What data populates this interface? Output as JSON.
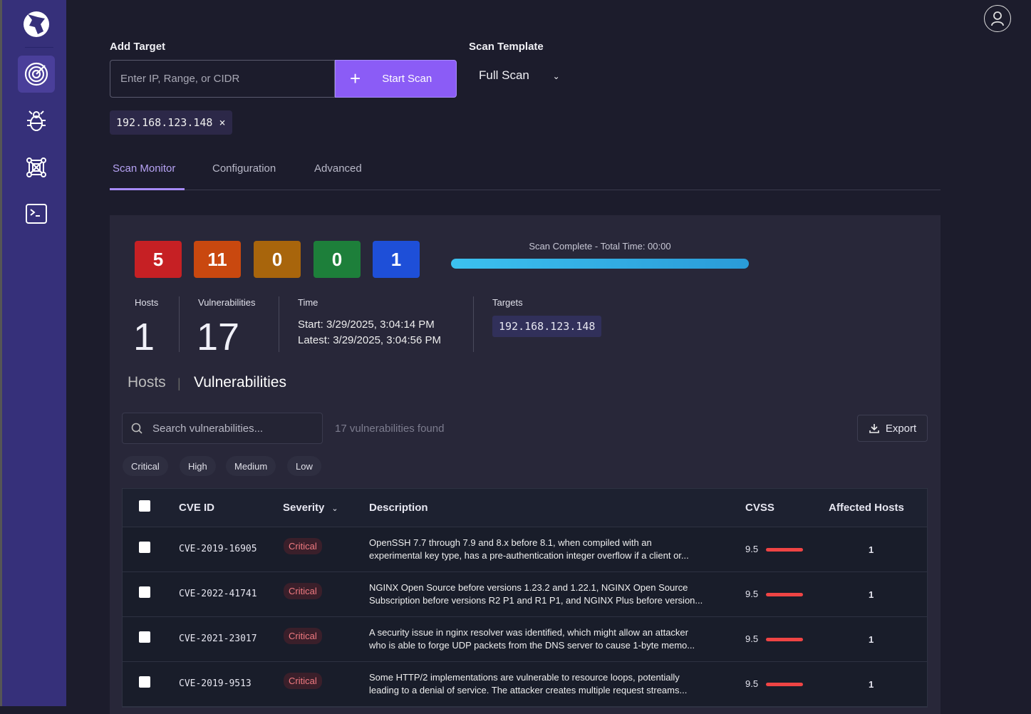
{
  "sidebar": {
    "items": [
      {
        "icon": "wolf-logo-icon"
      },
      {
        "icon": "radar-icon",
        "active": true
      },
      {
        "icon": "bug-icon"
      },
      {
        "icon": "network-icon"
      },
      {
        "icon": "terminal-icon"
      }
    ]
  },
  "header": {
    "user_icon": "user-icon"
  },
  "add_target": {
    "label": "Add Target",
    "placeholder": "Enter IP, Range, or CIDR",
    "start_scan": "Start Scan",
    "chip": "192.168.123.148",
    "chip_remove": "×"
  },
  "scan_template": {
    "label": "Scan Template",
    "value": "Full Scan"
  },
  "tabs": [
    {
      "label": "Scan Monitor",
      "active": true
    },
    {
      "label": "Configuration"
    },
    {
      "label": "Advanced"
    }
  ],
  "severity_counts": [
    {
      "value": "5",
      "color": "#c62024"
    },
    {
      "value": "11",
      "color": "#c9480f"
    },
    {
      "value": "0",
      "color": "#a8650c"
    },
    {
      "value": "0",
      "color": "#1d7f3a"
    },
    {
      "value": "1",
      "color": "#1e4fd8"
    }
  ],
  "progress": {
    "label": "Scan Complete - Total Time: 00:00",
    "percent": 100
  },
  "stats": {
    "hosts_label": "Hosts",
    "hosts": "1",
    "vulns_label": "Vulnerabilities",
    "vulns": "17",
    "time_label": "Time",
    "start": "Start: 3/29/2025, 3:04:14 PM",
    "latest": "Latest: 3/29/2025, 3:04:56 PM",
    "targets_label": "Targets",
    "target": "192.168.123.148"
  },
  "subtabs": {
    "hosts": "Hosts",
    "sep": "|",
    "vulns": "Vulnerabilities"
  },
  "search": {
    "placeholder": "Search vulnerabilities...",
    "found": "17 vulnerabilities found",
    "export": "Export"
  },
  "filters": [
    "Critical",
    "High",
    "Medium",
    "Low"
  ],
  "table": {
    "headers": {
      "cve": "CVE ID",
      "severity": "Severity",
      "description": "Description",
      "cvss": "CVSS",
      "hosts": "Affected Hosts"
    },
    "rows": [
      {
        "cve": "CVE-2019-16905",
        "severity": "Critical",
        "d1": "OpenSSH 7.7 through 7.9 and 8.x before 8.1, when compiled with an",
        "d2": "experimental key type, has a pre-authentication integer overflow if a client or...",
        "cvss": "9.5",
        "hosts": "1"
      },
      {
        "cve": "CVE-2022-41741",
        "severity": "Critical",
        "d1": "NGINX Open Source before versions 1.23.2 and 1.22.1, NGINX Open Source",
        "d2": "Subscription before versions R2 P1 and R1 P1, and NGINX Plus before version...",
        "cvss": "9.5",
        "hosts": "1"
      },
      {
        "cve": "CVE-2021-23017",
        "severity": "Critical",
        "d1": "A security issue in nginx resolver was identified, which might allow an attacker",
        "d2": "who is able to forge UDP packets from the DNS server to cause 1-byte memo...",
        "cvss": "9.5",
        "hosts": "1"
      },
      {
        "cve": "CVE-2019-9513",
        "severity": "Critical",
        "d1": "Some HTTP/2 implementations are vulnerable to resource loops, potentially",
        "d2": "leading to a denial of service. The attacker creates multiple request streams...",
        "cvss": "9.5",
        "hosts": "1"
      }
    ]
  }
}
